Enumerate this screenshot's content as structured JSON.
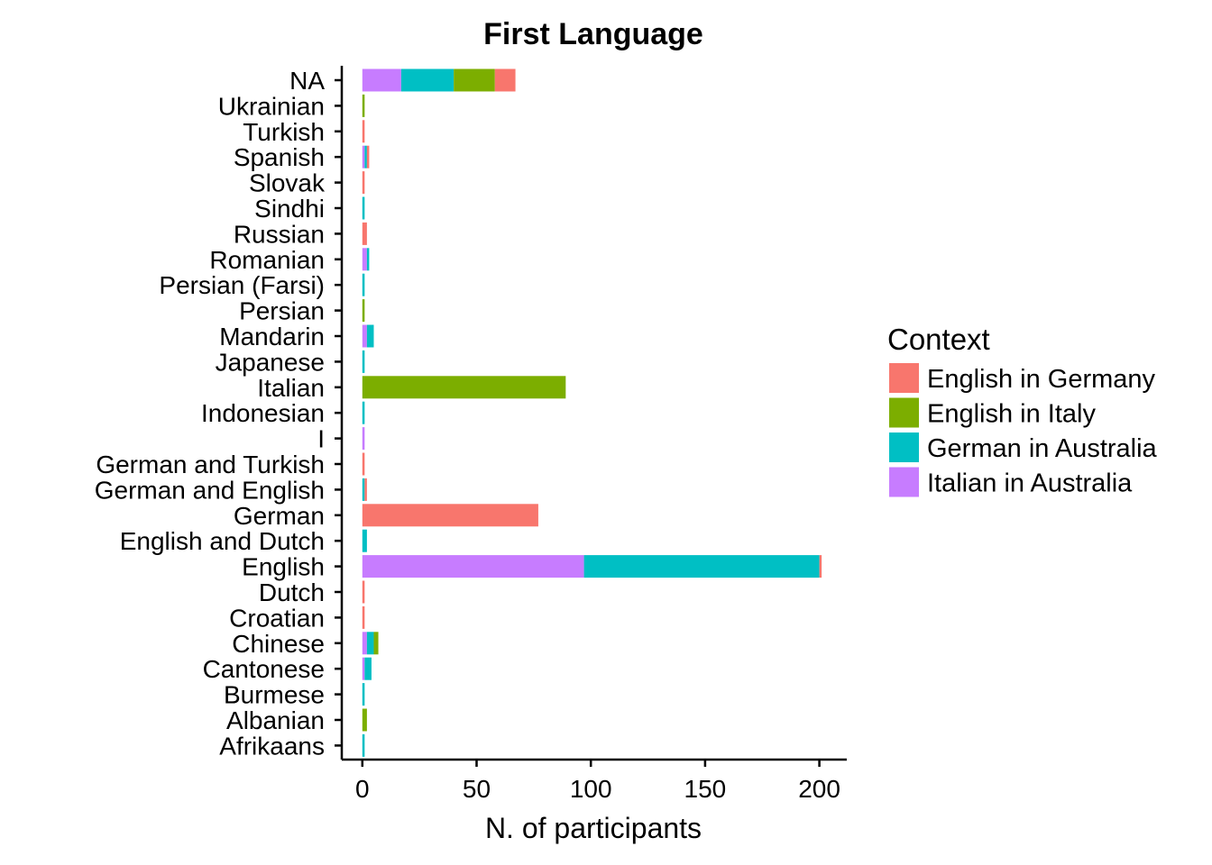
{
  "chart_data": {
    "type": "bar",
    "orientation": "horizontal",
    "stacked": true,
    "title": "First Language",
    "xlabel": "N. of participants",
    "ylabel": "",
    "xlim": [
      -9,
      212
    ],
    "xticks": [
      0,
      50,
      100,
      150,
      200
    ],
    "grid": false,
    "legend": {
      "title": "Context",
      "position": "right"
    },
    "categories": [
      "NA",
      "Ukrainian",
      "Turkish",
      "Spanish",
      "Slovak",
      "Sindhi",
      "Russian",
      "Romanian",
      "Persian (Farsi)",
      "Persian",
      "Mandarin",
      "Japanese",
      "Italian",
      "Indonesian",
      "I",
      "German and Turkish",
      "German and English",
      "German",
      "English and Dutch",
      "English",
      "Dutch",
      "Croatian",
      "Chinese",
      "Cantonese",
      "Burmese",
      "Albanian",
      "Afrikaans"
    ],
    "stack_order": [
      "Italian in Australia",
      "German in Australia",
      "English in Italy",
      "English in Germany"
    ],
    "series": [
      {
        "name": "English in Germany",
        "color": "#F8766D",
        "values": [
          9,
          0,
          1,
          1,
          1,
          0,
          2,
          0,
          0,
          0,
          0,
          0,
          0,
          0,
          0,
          1,
          1,
          77,
          0,
          1,
          1,
          1,
          0,
          0,
          0,
          0,
          0
        ]
      },
      {
        "name": "English in Italy",
        "color": "#7CAE00",
        "values": [
          18,
          1,
          0,
          0,
          0,
          0,
          0,
          0,
          0,
          1,
          0,
          0,
          89,
          0,
          0,
          0,
          0,
          0,
          0,
          0,
          0,
          0,
          2,
          0,
          0,
          2,
          0
        ]
      },
      {
        "name": "German in Australia",
        "color": "#00BFC4",
        "values": [
          23,
          0,
          0,
          1,
          0,
          1,
          0,
          1,
          1,
          0,
          3,
          1,
          0,
          1,
          0,
          0,
          1,
          0,
          2,
          103,
          0,
          0,
          3,
          3,
          1,
          0,
          1
        ]
      },
      {
        "name": "Italian in Australia",
        "color": "#C77CFF",
        "values": [
          17,
          0,
          0,
          1,
          0,
          0,
          0,
          2,
          0,
          0,
          2,
          0,
          0,
          0,
          1,
          0,
          0,
          0,
          0,
          97,
          0,
          0,
          2,
          1,
          0,
          0,
          0
        ]
      }
    ]
  }
}
